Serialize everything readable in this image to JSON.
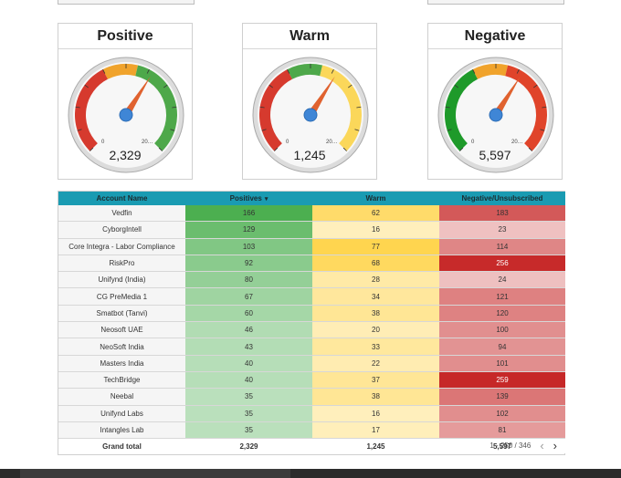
{
  "gauges": [
    {
      "title": "Positive",
      "value": "2,329",
      "min": "0",
      "max": "20…",
      "value_fraction": 0.62,
      "bands": [
        {
          "color": "#d63a2e"
        },
        {
          "color": "#f0a32c"
        },
        {
          "color": "#4ea84a"
        }
      ],
      "order": [
        "red",
        "orange",
        "green"
      ]
    },
    {
      "title": "Warm",
      "value": "1,245",
      "min": "0",
      "max": "20…",
      "value_fraction": 0.62,
      "bands": [
        {
          "color": "#d63a2e"
        },
        {
          "color": "#4ea84a"
        },
        {
          "color": "#fbd75a"
        }
      ],
      "order": [
        "red",
        "green",
        "yellow"
      ]
    },
    {
      "title": "Negative",
      "value": "5,597",
      "min": "0",
      "max": "20…",
      "value_fraction": 0.62,
      "bands": [
        {
          "color": "#1e9a2a"
        },
        {
          "color": "#f0a32c"
        },
        {
          "color": "#e0442a"
        }
      ],
      "order": [
        "green",
        "orange",
        "red"
      ]
    }
  ],
  "table": {
    "headers": {
      "name": "Account Name",
      "positives": "Positives",
      "warm": "Warm",
      "negative": "Negative/Unsubscribed"
    },
    "sort_indicator": "▾",
    "rows": [
      {
        "name": "Vedfin",
        "positives": "166",
        "warm": "62",
        "negative": "183"
      },
      {
        "name": "CyborgIntell",
        "positives": "129",
        "warm": "16",
        "negative": "23"
      },
      {
        "name": "Core Integra - Labor Compliance",
        "positives": "103",
        "warm": "77",
        "negative": "114"
      },
      {
        "name": "RiskPro",
        "positives": "92",
        "warm": "68",
        "negative": "256"
      },
      {
        "name": "Unifynd (India)",
        "positives": "80",
        "warm": "28",
        "negative": "24"
      },
      {
        "name": "CG PreMedia 1",
        "positives": "67",
        "warm": "34",
        "negative": "121"
      },
      {
        "name": "Smatbot (Tanvi)",
        "positives": "60",
        "warm": "38",
        "negative": "120"
      },
      {
        "name": "Neosoft UAE",
        "positives": "46",
        "warm": "20",
        "negative": "100"
      },
      {
        "name": "NeoSoft India",
        "positives": "43",
        "warm": "33",
        "negative": "94"
      },
      {
        "name": "Masters India",
        "positives": "40",
        "warm": "22",
        "negative": "101"
      },
      {
        "name": "TechBridge",
        "positives": "40",
        "warm": "37",
        "negative": "259"
      },
      {
        "name": "Neebal",
        "positives": "35",
        "warm": "38",
        "negative": "139"
      },
      {
        "name": "Unifynd Labs",
        "positives": "35",
        "warm": "16",
        "negative": "102"
      },
      {
        "name": "Intangles Lab",
        "positives": "35",
        "warm": "17",
        "negative": "81"
      }
    ],
    "total": {
      "name": "Grand total",
      "positives": "2,329",
      "warm": "1,245",
      "negative": "5,597"
    },
    "pagination": {
      "text": "1 - 250 / 346",
      "prev": "‹",
      "next": "›"
    }
  },
  "colors": {
    "header": "#1a9bb2",
    "positive_base": "#4caf50",
    "warm_base": "#ffd54f",
    "negative_base": "#c62828"
  }
}
